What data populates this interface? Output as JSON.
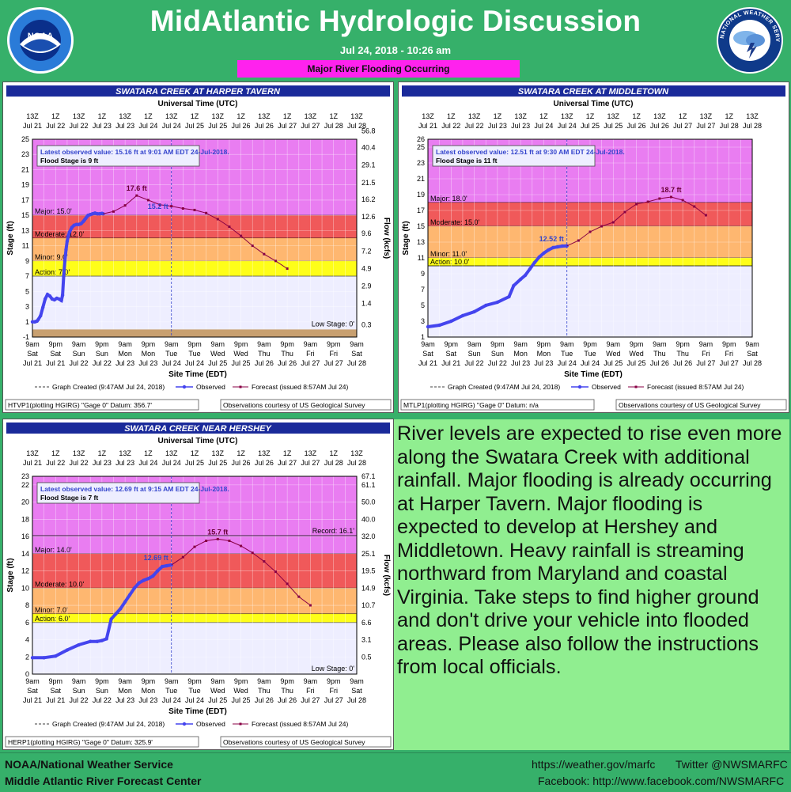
{
  "header": {
    "title": "MidAtlantic Hydrologic Discussion",
    "date": "Jul 24, 2018 - 10:26 am",
    "banner": "Major River Flooding Occurring"
  },
  "body_text": "River levels are expected to rise even more along the Swatara Creek with additional rainfall. Major flooding is already occurring at Harper Tavern. Major flooding is expected to develop at Hershey and Middletown. Heavy rainfall is streaming northward from Maryland and coastal Virginia. Take steps to find higher ground and don't drive your vehicle into flooded areas. Please also follow the instructions from local officials.",
  "footer": {
    "org1": "NOAA/National Weather Service",
    "org2": "Middle Atlantic River Forecast Center",
    "website": "https://weather.gov/marfc",
    "twitter": "Twitter @NWSMARFC",
    "facebook": "Facebook: http://www.facebook.com/NWSMARFC"
  },
  "logos": {
    "noaa_text": "NOAA",
    "nws_text": "NATIONAL WEATHER SERVICE"
  },
  "colors": {
    "background": "#36b06a",
    "banner": "#ff22ee",
    "text_box": "#90ee90",
    "major": "#e870f0",
    "major_red": "#f04848",
    "moderate": "#ffb060",
    "minor": "#ffee60",
    "action": "#ffff00",
    "observed": "#4444ee",
    "forecast": "#880044",
    "plot_bg": "#eeeeff"
  },
  "shared_axis": {
    "utc_label": "Universal Time (UTC)",
    "edt_label": "Site Time (EDT)",
    "utc_ticks": [
      [
        "13Z",
        "Jul 21"
      ],
      [
        "1Z",
        "Jul 22"
      ],
      [
        "13Z",
        "Jul 22"
      ],
      [
        "1Z",
        "Jul 23"
      ],
      [
        "13Z",
        "Jul 23"
      ],
      [
        "1Z",
        "Jul 24"
      ],
      [
        "13Z",
        "Jul 24"
      ],
      [
        "1Z",
        "Jul 25"
      ],
      [
        "13Z",
        "Jul 25"
      ],
      [
        "1Z",
        "Jul 26"
      ],
      [
        "13Z",
        "Jul 26"
      ],
      [
        "1Z",
        "Jul 27"
      ],
      [
        "13Z",
        "Jul 27"
      ],
      [
        "1Z",
        "Jul 28"
      ],
      [
        "13Z",
        "Jul 28"
      ]
    ],
    "edt_ticks": [
      [
        "9am",
        "Sat",
        "Jul 21"
      ],
      [
        "9pm",
        "Sat",
        "Jul 21"
      ],
      [
        "9am",
        "Sun",
        "Jul 22"
      ],
      [
        "9pm",
        "Sun",
        "Jul 22"
      ],
      [
        "9am",
        "Mon",
        "Jul 23"
      ],
      [
        "9pm",
        "Mon",
        "Jul 23"
      ],
      [
        "9am",
        "Tue",
        "Jul 24"
      ],
      [
        "9pm",
        "Tue",
        "Jul 24"
      ],
      [
        "9am",
        "Wed",
        "Jul 25"
      ],
      [
        "9pm",
        "Wed",
        "Jul 25"
      ],
      [
        "9am",
        "Thu",
        "Jul 26"
      ],
      [
        "9pm",
        "Thu",
        "Jul 26"
      ],
      [
        "9am",
        "Fri",
        "Jul 27"
      ],
      [
        "9pm",
        "Fri",
        "Jul 27"
      ],
      [
        "9am",
        "Sat",
        "Jul 28"
      ]
    ],
    "legend_created": "Graph Created (9:47AM Jul 24, 2018)",
    "legend_observed": "Observed",
    "legend_forecast": "Forecast (issued 8:57AM Jul 24)",
    "stage_label": "Stage (ft)",
    "flow_label": "Flow (kcfs)"
  },
  "chart_data": [
    {
      "type": "line",
      "title": "SWATARA CREEK AT HARPER TAVERN",
      "ylabel": "Stage (ft)",
      "y2label": "Flow (kcfs)",
      "xlabel": "Site Time (EDT)",
      "ylim": [
        -1,
        25
      ],
      "yticks": [
        -1,
        1,
        3,
        5,
        7,
        9,
        11,
        13,
        15,
        17,
        19,
        21,
        23,
        25
      ],
      "flow_ticks": [
        {
          "stage": 0.6,
          "label": "0.3"
        },
        {
          "stage": 3.4,
          "label": "1.4"
        },
        {
          "stage": 5.7,
          "label": "2.9"
        },
        {
          "stage": 8.0,
          "label": "4.9"
        },
        {
          "stage": 10.3,
          "label": "7.2"
        },
        {
          "stage": 12.6,
          "label": "9.6"
        },
        {
          "stage": 14.8,
          "label": "12.6"
        },
        {
          "stage": 17.1,
          "label": "16.2"
        },
        {
          "stage": 19.3,
          "label": "21.5"
        },
        {
          "stage": 21.6,
          "label": "29.1"
        },
        {
          "stage": 23.9,
          "label": "40.4"
        },
        {
          "stage": 26.1,
          "label": "56.8"
        }
      ],
      "categories_stage": [
        {
          "name": "Major",
          "label": "Major: 15.0'",
          "from": 15,
          "to": 25,
          "color": "#e870f0"
        },
        {
          "name": "Moderate",
          "label": "Moderate: 12.0'",
          "from": 12,
          "to": 15,
          "color": "#f04848"
        },
        {
          "name": "Minor",
          "label": "Minor: 9.0'",
          "from": 9,
          "to": 12,
          "color": "#ffb060"
        },
        {
          "name": "Action",
          "label": "Action: 7.0'",
          "from": 7,
          "to": 9,
          "color": "#ffff00"
        }
      ],
      "low_stage": {
        "label": "Low Stage: 0'",
        "value": 0
      },
      "latest_observed": "Latest observed value: 15.16 ft at 9:01 AM EDT 24-Jul-2018.",
      "flood_stage": "Flood Stage is 9 ft",
      "obs_label": "15.2 ft",
      "fcst_label": "17.6 ft",
      "footer_left": "HTVP1(plotting HGIRG) \"Gage 0\" Datum: 356.7'",
      "footer_right": "Observations courtesy of US Geological Survey",
      "observed": {
        "x": [
          0,
          0.1,
          0.15,
          0.2,
          0.25,
          0.35,
          0.45,
          0.55,
          0.65,
          0.75,
          0.85,
          0.95,
          1.05,
          1.15,
          1.25,
          1.3,
          1.35,
          1.4,
          1.45,
          1.5,
          1.55,
          1.6,
          1.7,
          1.8,
          1.9,
          2.0,
          2.1,
          2.2,
          2.25,
          2.3,
          2.35,
          2.4,
          2.5,
          2.6,
          2.7,
          2.8,
          2.9,
          3.0,
          3.05
        ],
        "y": [
          1.0,
          1.0,
          1.05,
          1.1,
          1.3,
          1.8,
          2.9,
          4.0,
          4.6,
          4.4,
          4.0,
          3.9,
          4.1,
          4.0,
          3.8,
          4.5,
          7,
          9,
          10.5,
          11.6,
          12.3,
          12.8,
          13.4,
          13.7,
          13.8,
          13.8,
          13.9,
          14.2,
          14.4,
          14.6,
          14.8,
          15.0,
          15.1,
          15.2,
          15.3,
          15.2,
          15.2,
          15.25,
          15.2
        ]
      },
      "forecast": {
        "x": [
          3.05,
          3.5,
          4.0,
          4.5,
          5.0,
          5.5,
          6.0,
          6.5,
          7.0,
          7.5,
          8.0,
          8.5,
          9.0,
          9.5,
          10.0,
          10.5,
          11.0,
          11.5
        ],
        "y": [
          15.2,
          15.5,
          16.3,
          17.6,
          17.0,
          16.4,
          16.2,
          15.9,
          15.7,
          15.3,
          14.5,
          13.5,
          12.3,
          11.0,
          9.9,
          9.0,
          8.0,
          null
        ]
      },
      "now_x": 6.0
    },
    {
      "type": "line",
      "title": "SWATARA CREEK AT MIDDLETOWN",
      "ylabel": "Stage (ft)",
      "xlabel": "Site Time (EDT)",
      "ylim": [
        1,
        26
      ],
      "yticks": [
        1,
        3,
        5,
        7,
        9,
        11,
        13,
        15,
        17,
        19,
        21,
        23,
        25,
        26
      ],
      "categories_stage": [
        {
          "name": "Major",
          "label": "Major: 18.0'",
          "from": 18,
          "to": 26,
          "color": "#e870f0"
        },
        {
          "name": "Moderate",
          "label": "Moderate: 15.0'",
          "from": 15,
          "to": 18,
          "color": "#f04848"
        },
        {
          "name": "Minor",
          "label": "Minor: 11.0'",
          "from": 11,
          "to": 15,
          "color": "#ffb060"
        },
        {
          "name": "Action",
          "label": "Action: 10.0'",
          "from": 10,
          "to": 11,
          "color": "#ffff00"
        }
      ],
      "latest_observed": "Latest observed value: 12.51 ft at 9:30 AM EDT 24-Jul-2018.",
      "flood_stage": "Flood Stage is 11 ft",
      "obs_label": "12.52 ft",
      "fcst_label": "18.7 ft",
      "footer_left": "MTLP1(plotting HGIRG) \"Gage 0\" Datum: n/a",
      "footer_right": "Observations courtesy of US Geological Survey",
      "observed": {
        "x": [
          0,
          0.5,
          1.0,
          1.5,
          2.0,
          2.5,
          3.0,
          3.5,
          3.7,
          4.0,
          4.2,
          4.4,
          4.6,
          4.8,
          5.0,
          5.2,
          5.4,
          5.6,
          5.8,
          6.0
        ],
        "y": [
          2.3,
          2.5,
          3.0,
          3.7,
          4.2,
          5.0,
          5.4,
          6.1,
          7.5,
          8.3,
          8.8,
          9.6,
          10.4,
          11.1,
          11.6,
          12.0,
          12.3,
          12.4,
          12.5,
          12.52
        ]
      },
      "forecast": {
        "x": [
          6.0,
          6.5,
          7.0,
          7.5,
          8.0,
          8.5,
          9.0,
          9.5,
          10.0,
          10.5,
          11.0,
          11.5,
          12.0
        ],
        "y": [
          12.52,
          13.2,
          14.3,
          15.0,
          15.5,
          16.8,
          17.8,
          18.1,
          18.5,
          18.7,
          18.3,
          17.5,
          16.4
        ]
      },
      "now_x": 6.0
    },
    {
      "type": "line",
      "title": "SWATARA CREEK NEAR HERSHEY",
      "ylabel": "Stage (ft)",
      "y2label": "Flow (kcfs)",
      "xlabel": "Site Time (EDT)",
      "ylim": [
        0,
        23
      ],
      "yticks": [
        0,
        2,
        4,
        6,
        8,
        10,
        12,
        14,
        16,
        18,
        20,
        22,
        23
      ],
      "flow_ticks": [
        {
          "stage": 2.0,
          "label": "0.5"
        },
        {
          "stage": 4.0,
          "label": "3.1"
        },
        {
          "stage": 6.0,
          "label": "6.6"
        },
        {
          "stage": 8.0,
          "label": "10.7"
        },
        {
          "stage": 10.0,
          "label": "14.9"
        },
        {
          "stage": 12.0,
          "label": "19.5"
        },
        {
          "stage": 14.0,
          "label": "25.1"
        },
        {
          "stage": 16.0,
          "label": "32.0"
        },
        {
          "stage": 18.0,
          "label": "40.0"
        },
        {
          "stage": 20.0,
          "label": "50.0"
        },
        {
          "stage": 22.0,
          "label": "61.1"
        },
        {
          "stage": 23.0,
          "label": "67.1"
        }
      ],
      "categories_stage": [
        {
          "name": "Major",
          "label": "Major: 14.0'",
          "from": 14,
          "to": 23,
          "color": "#e870f0"
        },
        {
          "name": "Moderate",
          "label": "Moderate: 10.0'",
          "from": 10,
          "to": 14,
          "color": "#f04848"
        },
        {
          "name": "Minor",
          "label": "Minor: 7.0'",
          "from": 7,
          "to": 10,
          "color": "#ffb060"
        },
        {
          "name": "Action",
          "label": "Action: 6.0'",
          "from": 6,
          "to": 7,
          "color": "#ffff00"
        }
      ],
      "record": {
        "label": "Record: 16.1'",
        "value": 16.1
      },
      "low_stage": {
        "label": "Low Stage: 0'",
        "value": 0
      },
      "latest_observed": "Latest observed value: 12.69 ft at 9:15 AM EDT 24-Jul-2018.",
      "flood_stage": "Flood Stage is 7 ft",
      "obs_label": "12.69 ft",
      "fcst_label": "15.7 ft",
      "footer_left": "HERP1(plotting HGIRG) \"Gage 0\" Datum: 325.9'",
      "footer_right": "Observations courtesy of US Geological Survey",
      "observed": {
        "x": [
          0,
          0.5,
          1.0,
          1.5,
          2.0,
          2.5,
          2.8,
          3.0,
          3.2,
          3.4,
          3.6,
          3.8,
          4.0,
          4.2,
          4.4,
          4.6,
          4.8,
          5.0,
          5.2,
          5.4,
          5.6,
          5.8,
          6.0
        ],
        "y": [
          1.9,
          1.9,
          2.1,
          2.8,
          3.4,
          3.8,
          3.8,
          3.9,
          4.1,
          6.4,
          7.0,
          7.6,
          8.4,
          9.2,
          10.0,
          10.6,
          10.9,
          11.1,
          11.4,
          12.0,
          12.5,
          12.6,
          12.69
        ]
      },
      "forecast": {
        "x": [
          6.0,
          6.5,
          7.0,
          7.5,
          8.0,
          8.5,
          9.0,
          9.5,
          10.0,
          10.5,
          11.0,
          11.5,
          12.0
        ],
        "y": [
          12.69,
          13.6,
          14.8,
          15.5,
          15.7,
          15.5,
          14.9,
          14.1,
          13.1,
          11.9,
          10.5,
          9.0,
          8.0
        ]
      },
      "now_x": 6.0
    }
  ]
}
